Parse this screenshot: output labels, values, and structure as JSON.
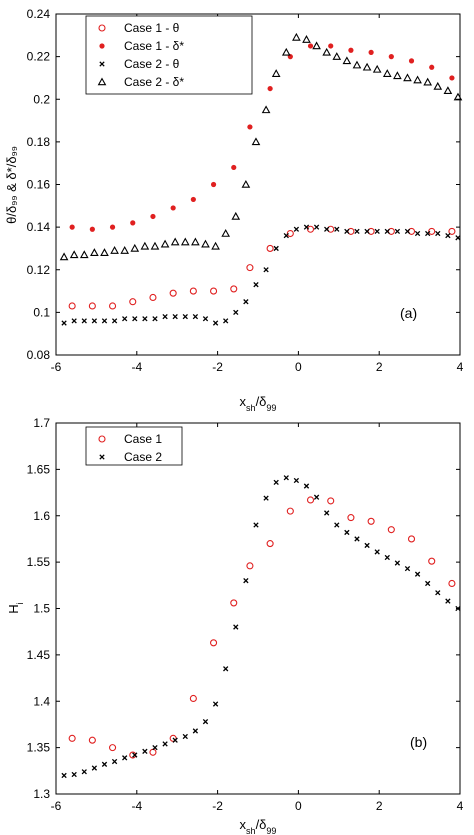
{
  "chart_data": [
    {
      "type": "scatter",
      "panel_label": "(a)",
      "xlabel": {
        "main": "x",
        "sub": "sh",
        "mid": "/δ",
        "sub2": "99"
      },
      "ylabel": "θ/δ₉₉ & δ*/δ₉₉",
      "xlim": [
        -6,
        4
      ],
      "ylim": [
        0.08,
        0.24
      ],
      "xticks": [
        -6,
        -4,
        -2,
        0,
        2,
        4
      ],
      "xtick_labels": [
        "-6",
        "-4",
        "-2",
        "0",
        "2",
        "4"
      ],
      "yticks": [
        0.08,
        0.1,
        0.12,
        0.14,
        0.16,
        0.18,
        0.2,
        0.22,
        0.24
      ],
      "ytick_labels": [
        "0.08",
        "0.1",
        "0.12",
        "0.14",
        "0.16",
        "0.18",
        "0.2",
        "0.22",
        "0.24"
      ],
      "grid": false,
      "legend_position": "top-left",
      "series": [
        {
          "name": "Case 1 - θ",
          "marker": "open-circle",
          "color": "#e02020",
          "x": [
            -5.6,
            -5.1,
            -4.6,
            -4.1,
            -3.6,
            -3.1,
            -2.6,
            -2.1,
            -1.6,
            -1.2,
            -0.7,
            -0.2,
            0.3,
            0.8,
            1.3,
            1.8,
            2.3,
            2.8,
            3.3,
            3.8
          ],
          "y": [
            0.103,
            0.103,
            0.103,
            0.105,
            0.107,
            0.109,
            0.11,
            0.11,
            0.111,
            0.121,
            0.13,
            0.137,
            0.139,
            0.139,
            0.138,
            0.138,
            0.138,
            0.138,
            0.138,
            0.138
          ]
        },
        {
          "name": "Case 1 - δ*",
          "marker": "filled-circle",
          "color": "#e02020",
          "x": [
            -5.6,
            -5.1,
            -4.6,
            -4.1,
            -3.6,
            -3.1,
            -2.6,
            -2.1,
            -1.6,
            -1.2,
            -0.7,
            -0.2,
            0.3,
            0.8,
            1.3,
            1.8,
            2.3,
            2.8,
            3.3,
            3.8
          ],
          "y": [
            0.14,
            0.139,
            0.14,
            0.142,
            0.145,
            0.149,
            0.153,
            0.16,
            0.168,
            0.187,
            0.205,
            0.22,
            0.225,
            0.225,
            0.223,
            0.222,
            0.22,
            0.218,
            0.215,
            0.21
          ]
        },
        {
          "name": "Case 2 - θ",
          "marker": "x",
          "color": "#000000",
          "x": [
            -5.8,
            -5.55,
            -5.3,
            -5.05,
            -4.8,
            -4.55,
            -4.3,
            -4.05,
            -3.8,
            -3.55,
            -3.3,
            -3.05,
            -2.8,
            -2.55,
            -2.3,
            -2.05,
            -1.8,
            -1.55,
            -1.3,
            -1.05,
            -0.8,
            -0.55,
            -0.3,
            -0.05,
            0.2,
            0.45,
            0.7,
            0.95,
            1.2,
            1.45,
            1.7,
            1.95,
            2.2,
            2.45,
            2.7,
            2.95,
            3.2,
            3.45,
            3.7,
            3.95
          ],
          "y": [
            0.095,
            0.096,
            0.096,
            0.096,
            0.096,
            0.096,
            0.097,
            0.097,
            0.097,
            0.097,
            0.098,
            0.098,
            0.098,
            0.098,
            0.097,
            0.095,
            0.096,
            0.1,
            0.105,
            0.113,
            0.12,
            0.13,
            0.136,
            0.139,
            0.14,
            0.14,
            0.139,
            0.139,
            0.138,
            0.138,
            0.138,
            0.138,
            0.138,
            0.138,
            0.138,
            0.137,
            0.137,
            0.137,
            0.136,
            0.135
          ]
        },
        {
          "name": "Case 2 - δ*",
          "marker": "open-triangle",
          "color": "#000000",
          "x": [
            -5.8,
            -5.55,
            -5.3,
            -5.05,
            -4.8,
            -4.55,
            -4.3,
            -4.05,
            -3.8,
            -3.55,
            -3.3,
            -3.05,
            -2.8,
            -2.55,
            -2.3,
            -2.05,
            -1.8,
            -1.55,
            -1.3,
            -1.05,
            -0.8,
            -0.55,
            -0.3,
            -0.05,
            0.2,
            0.45,
            0.7,
            0.95,
            1.2,
            1.45,
            1.7,
            1.95,
            2.2,
            2.45,
            2.7,
            2.95,
            3.2,
            3.45,
            3.7,
            3.95
          ],
          "y": [
            0.126,
            0.127,
            0.127,
            0.128,
            0.128,
            0.129,
            0.129,
            0.13,
            0.131,
            0.131,
            0.132,
            0.133,
            0.133,
            0.133,
            0.132,
            0.131,
            0.137,
            0.145,
            0.16,
            0.18,
            0.195,
            0.212,
            0.222,
            0.229,
            0.228,
            0.225,
            0.222,
            0.22,
            0.218,
            0.216,
            0.215,
            0.214,
            0.212,
            0.211,
            0.21,
            0.209,
            0.208,
            0.206,
            0.204,
            0.201
          ]
        }
      ]
    },
    {
      "type": "scatter",
      "panel_label": "(b)",
      "xlabel": {
        "main": "x",
        "sub": "sh",
        "mid": "/δ",
        "sub2": "99"
      },
      "ylabel": {
        "main": "H",
        "sub": "i"
      },
      "xlim": [
        -6,
        4
      ],
      "ylim": [
        1.3,
        1.7
      ],
      "xticks": [
        -6,
        -4,
        -2,
        0,
        2,
        4
      ],
      "xtick_labels": [
        "-6",
        "-4",
        "-2",
        "0",
        "2",
        "4"
      ],
      "yticks": [
        1.3,
        1.35,
        1.4,
        1.45,
        1.5,
        1.55,
        1.6,
        1.65,
        1.7
      ],
      "ytick_labels": [
        "1.3",
        "1.35",
        "1.4",
        "1.45",
        "1.5",
        "1.55",
        "1.6",
        "1.65",
        "1.7"
      ],
      "grid": false,
      "legend_position": "top-left",
      "series": [
        {
          "name": "Case 1",
          "marker": "open-circle",
          "color": "#e02020",
          "x": [
            -5.6,
            -5.1,
            -4.6,
            -4.1,
            -3.6,
            -3.1,
            -2.6,
            -2.1,
            -1.6,
            -1.2,
            -0.7,
            -0.2,
            0.3,
            0.8,
            1.3,
            1.8,
            2.3,
            2.8,
            3.3,
            3.8
          ],
          "y": [
            1.36,
            1.358,
            1.35,
            1.342,
            1.345,
            1.36,
            1.403,
            1.463,
            1.506,
            1.546,
            1.57,
            1.605,
            1.617,
            1.616,
            1.598,
            1.594,
            1.585,
            1.575,
            1.551,
            1.527
          ]
        },
        {
          "name": "Case 2",
          "marker": "x",
          "color": "#000000",
          "x": [
            -5.8,
            -5.55,
            -5.3,
            -5.05,
            -4.8,
            -4.55,
            -4.3,
            -4.05,
            -3.8,
            -3.55,
            -3.3,
            -3.05,
            -2.8,
            -2.55,
            -2.3,
            -2.05,
            -1.8,
            -1.55,
            -1.3,
            -1.05,
            -0.8,
            -0.55,
            -0.3,
            -0.05,
            0.2,
            0.45,
            0.7,
            0.95,
            1.2,
            1.45,
            1.7,
            1.95,
            2.2,
            2.45,
            2.7,
            2.95,
            3.2,
            3.45,
            3.7,
            3.95
          ],
          "y": [
            1.32,
            1.321,
            1.324,
            1.328,
            1.332,
            1.335,
            1.339,
            1.342,
            1.346,
            1.35,
            1.354,
            1.358,
            1.362,
            1.368,
            1.378,
            1.397,
            1.435,
            1.48,
            1.53,
            1.59,
            1.619,
            1.636,
            1.641,
            1.638,
            1.632,
            1.62,
            1.603,
            1.59,
            1.582,
            1.575,
            1.568,
            1.561,
            1.555,
            1.549,
            1.543,
            1.537,
            1.527,
            1.517,
            1.508,
            1.5
          ]
        }
      ]
    }
  ]
}
